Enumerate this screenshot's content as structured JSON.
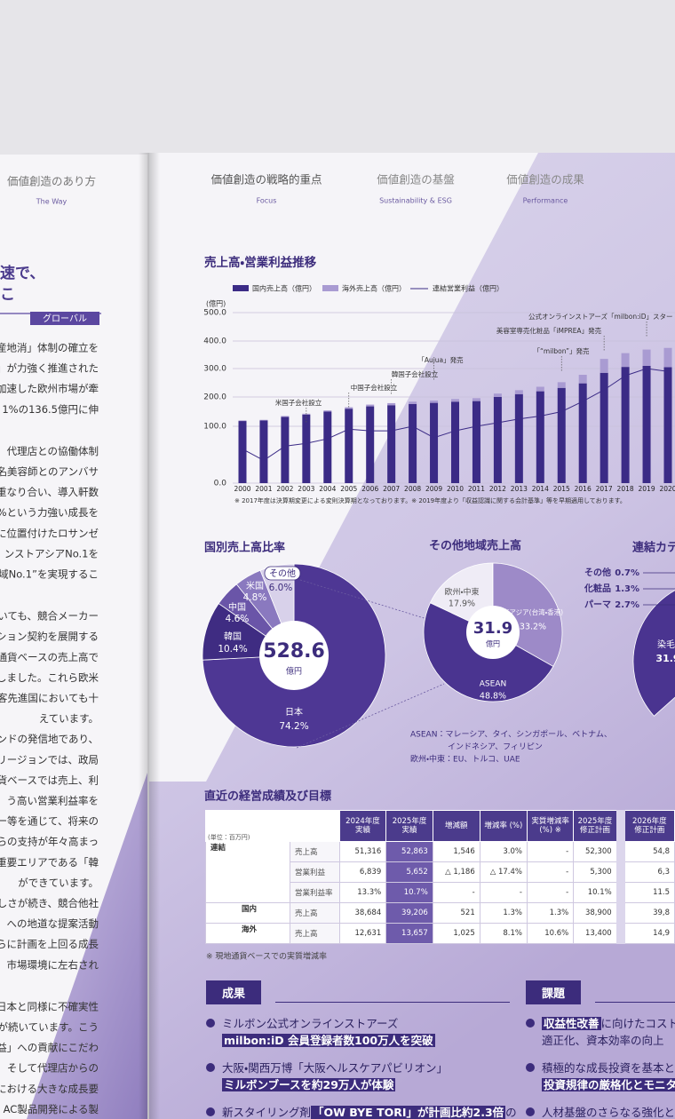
{
  "left_page": {
    "header": {
      "title": "価値創造のあり方",
      "subtitle": "The Way"
    },
    "heading": [
      "速で、",
      "こ"
    ],
    "tag": "グローバル",
    "paragraphs": [
      [
        "産地消」体制の確立を",
        "」が力強く推進された",
        "加速した欧州市場が牽",
        "1%の136.5億円に伸"
      ],
      [
        "代理店との協働体制",
        "名美容師とのアンバサ",
        "重なり合い、導入軒数",
        "%という力強い成長を",
        "に位置付けたロサンゼ",
        "ンストアシアNo.1を",
        "域No.1”を実現するこ"
      ],
      [
        "いても、競合メーカー",
        "ション契約を展開する",
        "通貨ベースの売上高で",
        "しました。これら欧米",
        "客先進国においても十",
        "えています。",
        "レンドの発信地であり、",
        "リージョンでは、政局",
        "貨ベースでは売上、利",
        "う高い営業利益率を",
        "ー等を通じて、将来の",
        "らの支持が年々高まっ",
        "重要エリアである「韓",
        "ができています。",
        "しさが続き、競合他社",
        "への地道な提案活動",
        "らに計画を上回る成長",
        "市場環境に左右され"
      ],
      [
        "日本と同様に不確実性",
        "が続いています。こう",
        "益」への貢献にこだわ",
        "そして代理店からの",
        "における大きな成長要",
        "AC製品開発による製"
      ]
    ]
  },
  "nav": [
    {
      "title": "価値創造の戦略的重点",
      "subtitle": "Focus"
    },
    {
      "title": "価値創造の基盤",
      "subtitle": "Sustainability & ESG"
    },
    {
      "title": "価値創造の成果",
      "subtitle": "Performance"
    }
  ],
  "sales_chart": {
    "type": "bar",
    "title": "売上高・営業利益推移",
    "unit": "(億円)",
    "categories": [
      "2000",
      "2001",
      "2002",
      "2003",
      "2004",
      "2005",
      "2006",
      "2007",
      "2008",
      "2009",
      "2010",
      "2011",
      "2012",
      "2013",
      "2014",
      "2015",
      "2016",
      "2017",
      "2018",
      "2019",
      "2020"
    ],
    "series": [
      {
        "name": "国内売上高（億円）",
        "color": "#3b2b86",
        "values": [
          118,
          120,
          132,
          140,
          150,
          160,
          168,
          172,
          176,
          180,
          184,
          186,
          200,
          210,
          220,
          232,
          248,
          285,
          306,
          310,
          305
        ]
      },
      {
        "name": "海外売上高（億円）",
        "color": "#a99bd2",
        "values": [
          2,
          2,
          3,
          3,
          4,
          5,
          6,
          7,
          8,
          8,
          9,
          10,
          12,
          14,
          16,
          20,
          30,
          50,
          50,
          59,
          70
        ]
      },
      {
        "name": "連結営業利益（億円）",
        "color": "#3b2b86",
        "type": "line",
        "values": [
          60,
          40,
          65,
          70,
          78,
          95,
          92,
          92,
          100,
          80,
          92,
          100,
          112,
          125,
          135,
          150,
          185,
          225,
          275,
          300,
          290
        ]
      }
    ],
    "ylim": [
      0,
      500
    ],
    "yticks": [
      {
        "value": 0,
        "label": "0.0"
      },
      {
        "value": 100,
        "label": "100.0"
      },
      {
        "value": 200,
        "label": "200.0"
      },
      {
        "value": 300,
        "label": "300.0"
      },
      {
        "value": 400,
        "label": "400.0"
      },
      {
        "value": 500,
        "label": "500.0"
      }
    ],
    "grid": true,
    "annotations": [
      "米国子会社設立",
      "中国子会社設立",
      "韓国子会社設立",
      "「Aujua」発売",
      "「“milbon”」発売",
      "美容室専売化粧品「iMPREA」発売",
      "公式オンラインストアーズ「milbon:iD」スタート"
    ],
    "footnote": "※ 2017年度は決算期変更による変則決算期となっております。※ 2019年度より「収益認識に関する会計基準」等を早期適用しております。"
  },
  "country_pie": {
    "type": "pie",
    "title": "国別売上高比率",
    "total": 528.6,
    "total_unit": "億円",
    "categories": [
      "日本",
      "韓国",
      "中国",
      "米国",
      "その他"
    ],
    "values": [
      74.2,
      10.4,
      4.6,
      4.8,
      6.0
    ],
    "value_labels": [
      "74.2%",
      "10.4%",
      "4.6%",
      "4.8%",
      "6.0%"
    ],
    "colors": [
      "#4e3794",
      "#3f2c82",
      "#6a55a8",
      "#8a79bf",
      "#d8d1ea"
    ]
  },
  "region_pie": {
    "type": "pie",
    "title": "その他地域売上高",
    "total": 31.9,
    "total_unit": "億円",
    "categories": [
      "東アジア(台湾・香港)",
      "ASEAN",
      "欧州・中東"
    ],
    "values": [
      33.2,
      48.8,
      17.9
    ],
    "value_labels": [
      "33.2%",
      "48.8%",
      "17.9%"
    ],
    "colors": [
      "#9d8ac8",
      "#4a3490",
      "#efecf6"
    ],
    "notes": [
      "ASEAN：マレーシア、タイ、シンガポール、ベトナム、",
      "インドネシア、フィリピン",
      "欧州・中東：EU、トルコ、UAE"
    ]
  },
  "category_pie": {
    "type": "pie",
    "title": "連結カテ",
    "categories": [
      "その他",
      "化粧品",
      "パーマ",
      "染毛"
    ],
    "values": [
      0.7,
      1.3,
      2.7,
      31.9
    ],
    "value_labels": [
      "0.7%",
      "1.3%",
      "2.7%",
      "31.9"
    ],
    "colors": [
      "#cfc6e6",
      "#9a88c9",
      "#6d58ad",
      "#4a3490"
    ]
  },
  "table": {
    "title": "直近の経営成績及び目標",
    "header": [
      "(単位：百万円)",
      "2024年度\n実績",
      "2025年度\n実績",
      "増減額",
      "増減率 (%)",
      "実質増減率\n(%) ※",
      "2025年度\n修正計画",
      "2026年度\n修正計画"
    ],
    "groups": [
      {
        "group": "連結",
        "rows": [
          {
            "item": "売上高",
            "cells": [
              "51,316",
              "52,863",
              "1,546",
              "3.0%",
              "-",
              "52,300",
              "54,8"
            ]
          },
          {
            "item": "営業利益",
            "cells": [
              "6,839",
              "5,652",
              "△ 1,186",
              "△ 17.4%",
              "-",
              "5,300",
              "6,3"
            ]
          },
          {
            "item": "営業利益率",
            "cells": [
              "13.3%",
              "10.7%",
              "-",
              "-",
              "-",
              "10.1%",
              "11.5"
            ]
          }
        ]
      },
      {
        "group": "国内",
        "rows": [
          {
            "item": "売上高",
            "cells": [
              "38,684",
              "39,206",
              "521",
              "1.3%",
              "1.3%",
              "38,900",
              "39,8"
            ]
          }
        ]
      },
      {
        "group": "海外",
        "rows": [
          {
            "item": "売上高",
            "cells": [
              "12,631",
              "13,657",
              "1,025",
              "8.1%",
              "10.6%",
              "13,400",
              "14,9"
            ]
          }
        ]
      }
    ],
    "note": "※ 現地通貨ベースでの実質増減率"
  },
  "results": {
    "title": "成果",
    "items": [
      {
        "lines": [
          [
            {
              "text": "ミルボン公式オンラインストアーズ"
            }
          ],
          [
            {
              "text": "milbon:iD 会員登録者数100万人を突破",
              "highlight": true
            }
          ]
        ]
      },
      {
        "lines": [
          [
            {
              "text": "大阪・関西万博「大阪ヘルスケアパビリオン」"
            }
          ],
          [
            {
              "text": "ミルボンブースを約29万人が体験",
              "highlight": true
            }
          ]
        ]
      },
      {
        "lines": [
          [
            {
              "text": "新スタイリング剤"
            },
            {
              "text": "「OW BYE TORI」が計画比約2.3倍",
              "highlight": true
            },
            {
              "text": "の"
            }
          ]
        ]
      }
    ]
  },
  "issues": {
    "title": "課題",
    "items": [
      {
        "lines": [
          [
            {
              "text": "収益性改善",
              "highlight": true
            },
            {
              "text": "に向けたコスト"
            }
          ],
          [
            {
              "text": "適正化、資本効率の向上"
            }
          ]
        ]
      },
      {
        "lines": [
          [
            {
              "text": "積極的な成長投資を基本と"
            }
          ],
          [
            {
              "text": "投資規律の厳格化とモニタ",
              "highlight": true
            }
          ]
        ]
      },
      {
        "lines": [
          [
            {
              "text": "人材基盤のさらなる強化と"
            }
          ]
        ]
      }
    ]
  }
}
